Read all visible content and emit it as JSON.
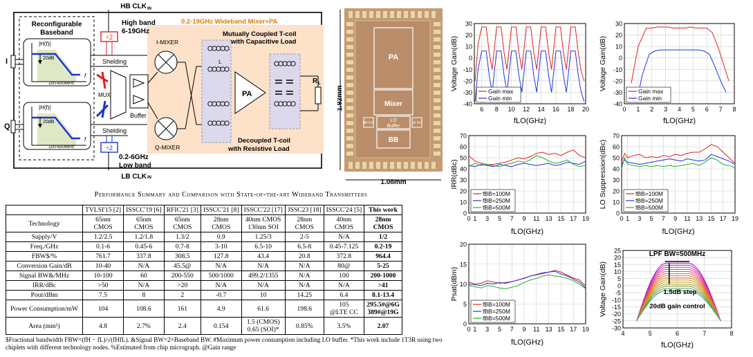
{
  "schematic": {
    "hb_clk": "HB CLK",
    "hb_clk_sub": "IN",
    "lb_clk": "LB CLK",
    "lb_clk_sub": "IN",
    "high_band": "High band",
    "high_band_range": "6-19GHz",
    "low_band": "Low band",
    "low_band_range": "0.2-6GHz",
    "div2_top": "÷2",
    "div2_bottom": "÷2",
    "title": "0.2-19GHz Wideband Mixer+PA",
    "reconfigurable": "Reconfigurable",
    "baseband": "Baseband",
    "hf_label": "|H(f)|",
    "db_label": "20dB",
    "bw_label": "100-600MHz",
    "f_label": "f",
    "i_port": "I",
    "q_port": "Q",
    "shielding_top": "Shelding",
    "shielding_bottom": "Shelding",
    "mux": "MUX",
    "buffer": "Buffer",
    "i_mixer": "I-MIXER",
    "q_mixer": "Q-MIXER",
    "tcoil_top": "Mutually Coupled T-coil",
    "tcoil_top2": "with Capacitive Load",
    "tcoil_bottom": "Decoupled T-coil",
    "tcoil_bottom2": "with Resistive Load",
    "pa": "PA",
    "rl": "R",
    "rl_sub": "L",
    "lk": "L",
    "lk_sub": "K"
  },
  "chip": {
    "height_label": "1.92mm",
    "width_label": "1.08mm",
    "blocks": [
      "PA",
      "Mixer",
      "LO",
      "Buffer",
      "BB",
      "BB DIV",
      "LB DIV"
    ]
  },
  "table": {
    "caption": "Performance Summary and Comparison with State-of-the-art Wideband Transmitters",
    "headers": [
      "",
      "TVLSI'15 [2]",
      "ISSCC'19 [6]",
      "RFIC'21 [3]",
      "ISSCC'21 [8]",
      "ISSCC'22 [17]",
      "JSSC23 [18]",
      "ISSCC'24 [5]",
      "This work"
    ],
    "rows": [
      [
        "Technology",
        "65nm\nCMOS",
        "65nm\nCMOS",
        "65nm\nCMOS",
        "28nm\nCMOS",
        "40nm CMOS\n130nm SOI",
        "28nm\nCMOS",
        "40nm\nCMOS",
        "28nm\nCMOS"
      ],
      [
        "Supply/V",
        "1.2/2.5",
        "1.2/1.8",
        "1.3/2",
        "0.9",
        "1.25/3",
        "2-5",
        "N/A",
        "1/2"
      ],
      [
        "Freq./GHz",
        "0.1-6",
        "0.45-6",
        "0.7-8",
        "3-10",
        "6.5-10",
        "6.5-8",
        "0.45-7.125",
        "0.2-19"
      ],
      [
        "FBW$/%",
        "761.7",
        "337.8",
        "308.5",
        "127.8",
        "43.4",
        "20.8",
        "372.8",
        "964.4"
      ],
      [
        "Conversion Gain/dB",
        "10-40",
        "N/A",
        "45.5@",
        "N/A",
        "N/A",
        "N/A",
        "80@",
        "5-25"
      ],
      [
        "Signal BW&/MHz",
        "10-100",
        "60",
        "200-550",
        "500/1000",
        "499.2/1355",
        "N/A",
        "100",
        "200-1000"
      ],
      [
        "IRR/dBc",
        ">50",
        "N/A",
        ">20",
        "N/A",
        "N/A",
        "N/A",
        "N/A",
        ">41"
      ],
      [
        "Pout/dBm",
        "7.5",
        "8",
        "2",
        "-0.7",
        "10",
        "14.25",
        "6.4",
        "8.1-13.4"
      ],
      [
        "Power Consumption/mW",
        "104",
        "108.6",
        "161",
        "4.9",
        "61.6",
        "198.6",
        "105\n@LTE CC",
        "295.5#@6G\n389#@19G"
      ],
      [
        "Area (mm²)",
        "4.8",
        "2.7%",
        "2.4",
        "0.154",
        "1.5 (CMOS)\n0.65 (SOI)*",
        "0.85%",
        "3.5%",
        "2.07"
      ]
    ],
    "footnote": "$Fractional bandwidth FBW=(fH − fL)/√(fHfL). &Signal BW=2×Baseband BW. #Maximum power consumption including LO buffer. *This work include 1T3R using two chiplets with different technology nodes. %Estimated from chip micrograph. @Gain range"
  },
  "chart_data": [
    {
      "type": "line",
      "xlabel": "fLO(GHz)",
      "ylabel": "Voltage Gain(dB)",
      "xlim": [
        5,
        20
      ],
      "ylim": [
        -40,
        30
      ],
      "xticks": [
        6,
        8,
        10,
        12,
        14,
        16,
        18,
        20
      ],
      "yticks": [
        -40,
        -30,
        -20,
        -10,
        0,
        10,
        20,
        30
      ],
      "legend_position": "bottom-left",
      "series": [
        {
          "name": "Gain max",
          "color": "#e02020",
          "x": [
            5.1,
            5.5,
            6.0,
            6.6,
            7.0,
            7.4,
            8.0,
            8.6,
            9.0,
            9.4,
            10.0,
            10.6,
            11.0,
            11.4,
            12.0,
            12.6,
            13.0,
            13.4,
            14.0,
            14.6,
            15.0,
            15.4,
            16.0,
            16.6,
            17.0,
            17.4,
            18.0,
            18.6,
            19.0,
            19.4,
            19.8
          ],
          "y": [
            -20,
            12,
            27,
            27,
            5,
            -10,
            27,
            27,
            5,
            -10,
            27,
            27,
            5,
            -10,
            27,
            27,
            5,
            -10,
            27,
            27,
            5,
            -10,
            27,
            27,
            5,
            -10,
            27,
            27,
            5,
            -12,
            -20
          ]
        },
        {
          "name": "Gain min",
          "color": "#2030e0",
          "x": [
            5.1,
            5.5,
            6.0,
            6.6,
            7.0,
            7.4,
            8.0,
            8.6,
            9.0,
            9.4,
            10.0,
            10.6,
            11.0,
            11.4,
            12.0,
            12.6,
            13.0,
            13.4,
            14.0,
            14.6,
            15.0,
            15.4,
            16.0,
            16.6,
            17.0,
            17.4,
            18.0,
            18.6,
            19.0,
            19.4,
            19.8
          ],
          "y": [
            -38,
            -10,
            6,
            6,
            -15,
            -30,
            6,
            6,
            -15,
            -30,
            6,
            6,
            -15,
            -30,
            6,
            6,
            -15,
            -30,
            6,
            6,
            -15,
            -30,
            6,
            6,
            -15,
            -30,
            6,
            6,
            -15,
            -30,
            -38
          ]
        }
      ]
    },
    {
      "type": "line",
      "xlabel": "fLO(GHz)",
      "ylabel": "Voltage Gain(dB)",
      "xlim": [
        0,
        8
      ],
      "ylim": [
        -40,
        30
      ],
      "xticks": [
        0,
        1,
        2,
        3,
        4,
        5,
        6,
        7,
        8
      ],
      "yticks": [
        -40,
        -30,
        -20,
        -10,
        0,
        10,
        20,
        30
      ],
      "legend_position": "bottom-left",
      "series": [
        {
          "name": "Gain max",
          "color": "#e02020",
          "x": [
            0.5,
            1.0,
            1.6,
            2.0,
            2.4,
            2.8,
            3.2,
            3.6,
            4.0,
            4.4,
            4.8,
            5.2,
            5.6,
            6.0,
            6.4,
            6.8,
            7.2,
            7.6
          ],
          "y": [
            -22,
            10,
            26,
            26,
            27,
            27,
            27,
            26,
            26,
            26,
            27,
            26,
            26,
            26,
            22,
            10,
            -5,
            -20
          ]
        },
        {
          "name": "Gain min",
          "color": "#2030e0",
          "x": [
            0.9,
            1.3,
            1.8,
            2.2,
            2.6,
            3.0,
            3.4,
            3.8,
            4.2,
            4.6,
            5.0,
            5.4,
            5.8,
            6.2,
            6.6,
            7.0,
            7.4
          ],
          "y": [
            -38,
            -15,
            3,
            6,
            7,
            7,
            7,
            7,
            7,
            7,
            7,
            7,
            6,
            3,
            -8,
            -20,
            -30
          ]
        }
      ]
    },
    {
      "type": "line",
      "xlabel": "fLO(GHz)",
      "ylabel": "IRR(dBc)",
      "xlim": [
        0,
        19
      ],
      "ylim": [
        0,
        70
      ],
      "xticks": [
        0,
        1,
        3,
        5,
        7,
        9,
        11,
        13,
        15,
        17,
        19
      ],
      "yticks": [
        0,
        10,
        20,
        30,
        40,
        50,
        60,
        70
      ],
      "legend_position": "bottom-left",
      "series": [
        {
          "name": "fBB=100M",
          "color": "#e02020",
          "x": [
            0,
            1,
            2,
            3,
            4,
            5,
            6,
            7,
            8,
            9,
            10,
            11,
            12,
            13,
            14,
            15,
            16,
            17,
            18,
            19
          ],
          "y": [
            52,
            47,
            45,
            44,
            44,
            45,
            46,
            48,
            50,
            49,
            51,
            54,
            55,
            53,
            54,
            52,
            55,
            57,
            52,
            50
          ]
        },
        {
          "name": "fBB=250M",
          "color": "#2030e0",
          "x": [
            0,
            1,
            2,
            3,
            4,
            5,
            6,
            7,
            8,
            9,
            10,
            11,
            12,
            13,
            14,
            15,
            16,
            17,
            18,
            19
          ],
          "y": [
            43,
            42,
            44,
            43,
            42,
            44,
            43,
            42,
            44,
            45,
            44,
            43,
            44,
            45,
            43,
            44,
            46,
            45,
            44,
            47
          ]
        },
        {
          "name": "fBB=500M",
          "color": "#20b020",
          "x": [
            0,
            1,
            2,
            3,
            4,
            5,
            6,
            7,
            8,
            9,
            10,
            11,
            12,
            13,
            14,
            15,
            16,
            17,
            18,
            19
          ],
          "y": [
            42,
            45,
            43,
            44,
            43,
            42,
            44,
            45,
            47,
            46,
            48,
            52,
            50,
            47,
            45,
            46,
            48,
            44,
            42,
            43
          ]
        }
      ]
    },
    {
      "type": "line",
      "xlabel": "fLO(GHz)",
      "ylabel": "LO Suppression(dBc)",
      "xlim": [
        0,
        19
      ],
      "ylim": [
        0,
        70
      ],
      "xticks": [
        0,
        1,
        3,
        5,
        7,
        9,
        11,
        13,
        15,
        17,
        19
      ],
      "yticks": [
        0,
        10,
        20,
        30,
        40,
        50,
        60,
        70
      ],
      "legend_position": "bottom-left",
      "series": [
        {
          "name": "fBB=100M",
          "color": "#e02020",
          "x": [
            0,
            0.5,
            1,
            2,
            3,
            4,
            5,
            6,
            7,
            8,
            9,
            10,
            11,
            12,
            13,
            14,
            15,
            16,
            17,
            18,
            19
          ],
          "y": [
            46,
            54,
            50,
            52,
            53,
            50,
            51,
            50,
            52,
            51,
            53,
            52,
            54,
            55,
            55,
            58,
            62,
            60,
            55,
            50,
            45
          ]
        },
        {
          "name": "fBB=250M",
          "color": "#2030e0",
          "x": [
            0,
            0.5,
            1,
            2,
            3,
            4,
            5,
            6,
            7,
            8,
            9,
            10,
            11,
            12,
            13,
            14,
            15,
            16,
            17,
            18,
            19
          ],
          "y": [
            44,
            48,
            46,
            45,
            44,
            45,
            46,
            47,
            48,
            49,
            48,
            47,
            49,
            48,
            47,
            48,
            53,
            51,
            49,
            47,
            44
          ]
        },
        {
          "name": "fBB=500M",
          "color": "#20b020",
          "x": [
            0,
            0.5,
            1,
            2,
            3,
            4,
            5,
            6,
            7,
            8,
            9,
            10,
            11,
            12,
            13,
            14,
            15,
            16,
            17,
            18,
            19
          ],
          "y": [
            40,
            50,
            44,
            43,
            42,
            43,
            42,
            43,
            42,
            43,
            42,
            43,
            44,
            45,
            43,
            46,
            50,
            48,
            44,
            43,
            41
          ]
        }
      ]
    },
    {
      "type": "line",
      "xlabel": "fLO(GHz)",
      "ylabel": "Psat(dBm)",
      "xlim": [
        0,
        19
      ],
      "ylim": [
        0,
        20
      ],
      "xticks": [
        0,
        1,
        3,
        5,
        7,
        9,
        11,
        13,
        15,
        17,
        19
      ],
      "yticks": [
        0,
        5,
        10,
        15,
        20
      ],
      "legend_position": "bottom-left",
      "series": [
        {
          "name": "fBB=100M",
          "color": "#e02020",
          "x": [
            0,
            1,
            2,
            3,
            4,
            5,
            6,
            7,
            8,
            9,
            10,
            11,
            12,
            13,
            14,
            15,
            16,
            17,
            18,
            19
          ],
          "y": [
            10.5,
            10,
            10.2,
            10.8,
            10.5,
            10.2,
            10.4,
            10.6,
            11,
            11.5,
            12,
            12.3,
            12.6,
            13,
            13.4,
            13,
            12.2,
            11.5,
            11,
            9.5
          ]
        },
        {
          "name": "fBB=250M",
          "color": "#2030e0",
          "x": [
            0,
            1,
            2,
            3,
            4,
            5,
            6,
            7,
            8,
            9,
            10,
            11,
            12,
            13,
            14,
            15,
            16,
            17,
            18,
            19
          ],
          "y": [
            10,
            9.8,
            9.6,
            10.2,
            10,
            10.4,
            10.2,
            10.6,
            11,
            11.4,
            12,
            12.4,
            12.8,
            13,
            13.2,
            12.5,
            12,
            11.2,
            10.5,
            9
          ]
        },
        {
          "name": "fBB=500M",
          "color": "#20b020",
          "x": [
            0,
            1,
            2,
            3,
            4,
            5,
            6,
            7,
            8,
            9,
            10,
            11,
            12,
            13,
            14,
            15,
            16,
            17,
            18,
            19
          ],
          "y": [
            9.6,
            9.3,
            9,
            9.6,
            9.4,
            9,
            8.8,
            9.2,
            9.6,
            10.4,
            11,
            11.4,
            12,
            12.3,
            12,
            11.8,
            11.4,
            10.8,
            10,
            8.8
          ]
        }
      ]
    },
    {
      "type": "line",
      "xlabel": "fLO(GHz)",
      "ylabel": "Voltage Gain(dB)",
      "xlim": [
        4,
        8
      ],
      "ylim": [
        -30,
        25
      ],
      "xticks": [
        4,
        5,
        6,
        7,
        8
      ],
      "yticks": [
        -30,
        -25,
        -20,
        -15,
        -10,
        -5,
        0,
        5,
        10,
        15,
        20,
        25
      ],
      "annotations": [
        "LPF BW=500MHz",
        "1.5dB step",
        "20dB gain control"
      ],
      "series_count": 14,
      "step_db": 1.5,
      "top_gain_db": 16,
      "x_start": 4.5,
      "x_rise_end": 5.6,
      "x_fall_start": 6.4,
      "x_end": 7.6,
      "edge_gain_db": -25
    }
  ]
}
